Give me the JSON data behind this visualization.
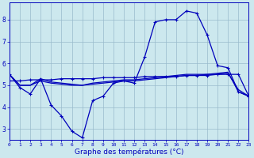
{
  "x": [
    0,
    1,
    2,
    3,
    4,
    5,
    6,
    7,
    8,
    9,
    10,
    11,
    12,
    13,
    14,
    15,
    16,
    17,
    18,
    19,
    20,
    21,
    22,
    23
  ],
  "temp_main": [
    5.5,
    4.9,
    4.6,
    5.3,
    4.1,
    3.6,
    2.9,
    2.6,
    4.3,
    4.5,
    5.1,
    5.2,
    5.1,
    6.3,
    7.9,
    8.0,
    8.0,
    8.4,
    8.3,
    7.3,
    5.9,
    5.8,
    4.7,
    4.5
  ],
  "line_reg1": [
    5.2,
    5.2,
    5.25,
    5.25,
    5.25,
    5.3,
    5.3,
    5.3,
    5.3,
    5.35,
    5.35,
    5.35,
    5.35,
    5.4,
    5.4,
    5.4,
    5.4,
    5.45,
    5.45,
    5.45,
    5.5,
    5.5,
    5.5,
    4.5
  ],
  "line_reg2": [
    5.5,
    5.0,
    5.0,
    5.2,
    5.1,
    5.05,
    5.0,
    5.0,
    5.05,
    5.1,
    5.15,
    5.2,
    5.2,
    5.25,
    5.3,
    5.35,
    5.4,
    5.45,
    5.45,
    5.5,
    5.5,
    5.55,
    4.8,
    4.5
  ],
  "line_reg3": [
    5.5,
    5.0,
    5.0,
    5.3,
    5.15,
    5.1,
    5.05,
    5.0,
    5.1,
    5.15,
    5.2,
    5.25,
    5.25,
    5.3,
    5.35,
    5.4,
    5.45,
    5.5,
    5.5,
    5.5,
    5.55,
    5.6,
    4.7,
    4.5
  ],
  "bg_color": "#cce8ee",
  "line_color": "#0000bb",
  "grid_color": "#99bbcc",
  "xlabel": "Graphe des températures (°C)",
  "xlim": [
    0,
    23
  ],
  "ylim": [
    2.5,
    8.8
  ],
  "yticks": [
    3,
    4,
    5,
    6,
    7,
    8
  ],
  "xticks": [
    0,
    1,
    2,
    3,
    4,
    5,
    6,
    7,
    8,
    9,
    10,
    11,
    12,
    13,
    14,
    15,
    16,
    17,
    18,
    19,
    20,
    21,
    22,
    23
  ]
}
